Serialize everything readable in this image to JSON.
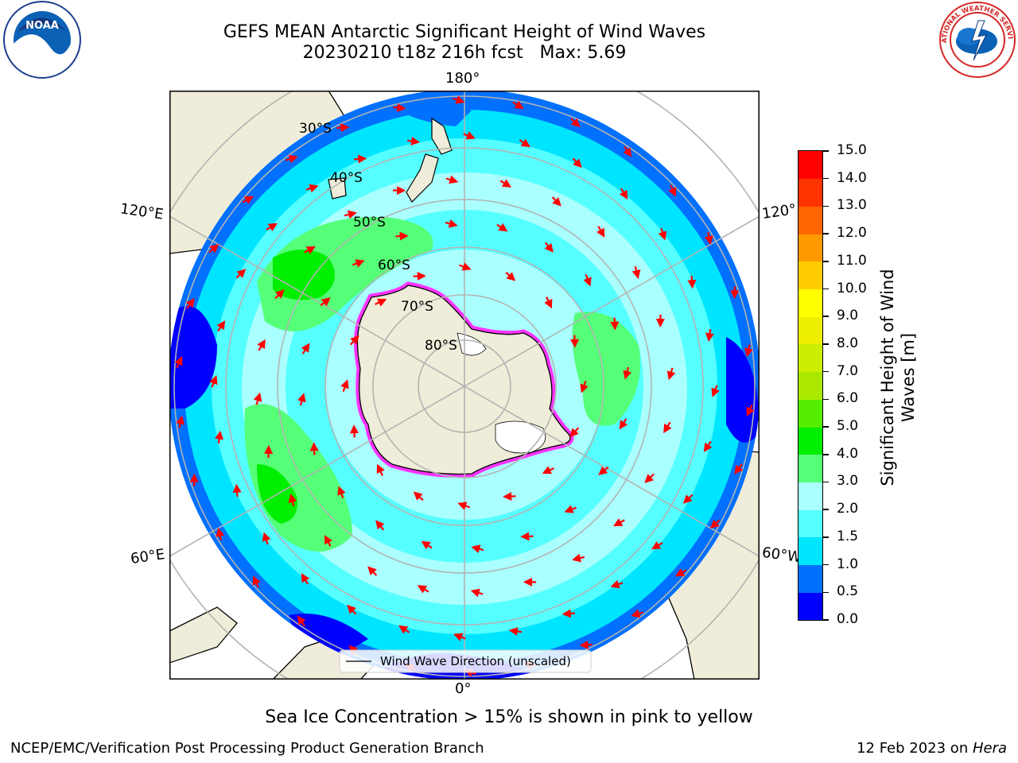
{
  "header": {
    "title_line1": "GEFS MEAN Antarctic Significant Height of Wind Waves",
    "title_line2": "20230210 t18z 216h fcst   Max: 5.69"
  },
  "logos": {
    "noaa_text": "NOAA",
    "nws_text": "NATIONAL WEATHER SERVICE"
  },
  "map": {
    "lon_labels": {
      "top": "180°",
      "bottom": "0°",
      "left_upper": "120°E",
      "left_lower": "60°E",
      "right_upper": "120°",
      "right_lower": "60°W"
    },
    "lat_labels": [
      "30°S",
      "40°S",
      "50°S",
      "60°S",
      "70°S",
      "80°S"
    ],
    "legend_label": "Wind Wave Direction (unscaled)",
    "colors": {
      "land": "#efedd9",
      "ice": "#ff33ff",
      "arrow": "#ff0000",
      "grid": "#b3b3b3"
    }
  },
  "colorbar": {
    "label_line1": "Significant Height of Wind",
    "label_line2": "Waves [m]",
    "ticks": [
      "0.0",
      "0.5",
      "1.0",
      "1.5",
      "2.0",
      "3.0",
      "4.0",
      "5.0",
      "6.0",
      "7.0",
      "8.0",
      "9.0",
      "10.0",
      "11.0",
      "12.0",
      "13.0",
      "14.0",
      "15.0"
    ],
    "colors": [
      "#0000ff",
      "#0070ff",
      "#00e5ff",
      "#55ffff",
      "#aaffff",
      "#55ff77",
      "#00ee00",
      "#55ee00",
      "#aae800",
      "#ccee00",
      "#eeee00",
      "#ffff00",
      "#ffcc00",
      "#ff9900",
      "#ff6600",
      "#ff3300",
      "#ff0000"
    ]
  },
  "caption": "Sea Ice Concentration > 15% is shown in pink to yellow",
  "footer": {
    "left": "NCEP/EMC/Verification Post Processing Product Generation Branch",
    "right_date": "12 Feb 2023 on ",
    "right_machine": "Hera"
  }
}
